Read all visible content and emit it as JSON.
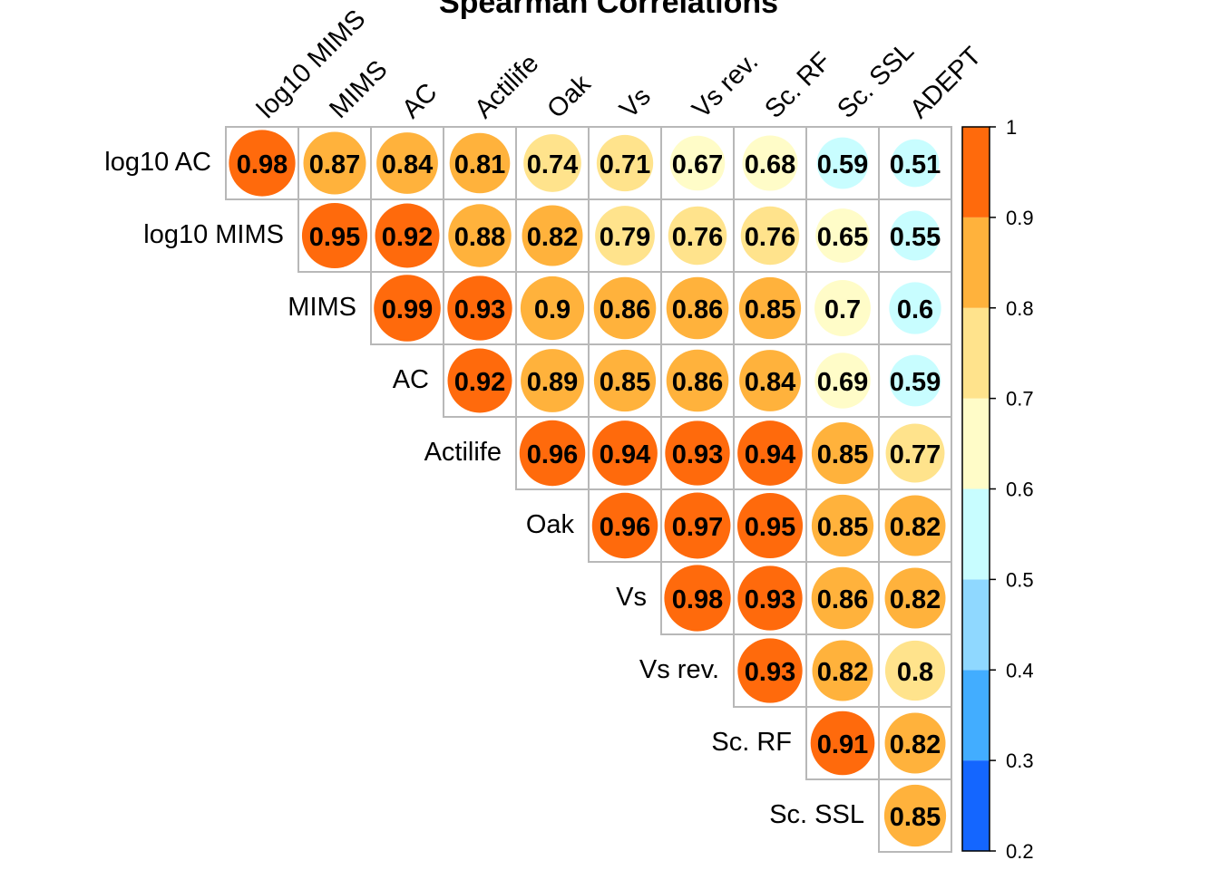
{
  "chart_data": {
    "type": "heatmap",
    "title": "Spearman Correlations",
    "columns": [
      "log10 MIMS",
      "MIMS",
      "AC",
      "Actilife",
      "Oak",
      "Vs",
      "Vs rev.",
      "Sc. RF",
      "Sc. SSL",
      "ADEPT"
    ],
    "rows": [
      "log10 AC",
      "log10 MIMS",
      "MIMS",
      "AC",
      "Actilife",
      "Oak",
      "Vs",
      "Vs rev.",
      "Sc. RF",
      "Sc. SSL"
    ],
    "values": [
      [
        0.98,
        0.87,
        0.84,
        0.81,
        0.74,
        0.71,
        0.67,
        0.68,
        0.59,
        0.51
      ],
      [
        null,
        0.95,
        0.92,
        0.88,
        0.82,
        0.79,
        0.76,
        0.76,
        0.65,
        0.55
      ],
      [
        null,
        null,
        0.99,
        0.93,
        0.9,
        0.86,
        0.86,
        0.85,
        0.7,
        0.6
      ],
      [
        null,
        null,
        null,
        0.92,
        0.89,
        0.85,
        0.86,
        0.84,
        0.69,
        0.59
      ],
      [
        null,
        null,
        null,
        null,
        0.96,
        0.94,
        0.93,
        0.94,
        0.85,
        0.77
      ],
      [
        null,
        null,
        null,
        null,
        null,
        0.96,
        0.97,
        0.95,
        0.85,
        0.82
      ],
      [
        null,
        null,
        null,
        null,
        null,
        null,
        0.98,
        0.93,
        0.86,
        0.82
      ],
      [
        null,
        null,
        null,
        null,
        null,
        null,
        null,
        0.93,
        0.82,
        0.8
      ],
      [
        null,
        null,
        null,
        null,
        null,
        null,
        null,
        null,
        0.91,
        0.82
      ],
      [
        null,
        null,
        null,
        null,
        null,
        null,
        null,
        null,
        null,
        0.85
      ]
    ],
    "value_labels": [
      [
        "0.98",
        "0.87",
        "0.84",
        "0.81",
        "0.74",
        "0.71",
        "0.67",
        "0.68",
        "0.59",
        "0.51"
      ],
      [
        null,
        "0.95",
        "0.92",
        "0.88",
        "0.82",
        "0.79",
        "0.76",
        "0.76",
        "0.65",
        "0.55"
      ],
      [
        null,
        null,
        "0.99",
        "0.93",
        "0.9",
        "0.86",
        "0.86",
        "0.85",
        "0.7",
        "0.6"
      ],
      [
        null,
        null,
        null,
        "0.92",
        "0.89",
        "0.85",
        "0.86",
        "0.84",
        "0.69",
        "0.59"
      ],
      [
        null,
        null,
        null,
        null,
        "0.96",
        "0.94",
        "0.93",
        "0.94",
        "0.85",
        "0.77"
      ],
      [
        null,
        null,
        null,
        null,
        null,
        "0.96",
        "0.97",
        "0.95",
        "0.85",
        "0.82"
      ],
      [
        null,
        null,
        null,
        null,
        null,
        null,
        "0.98",
        "0.93",
        "0.86",
        "0.82"
      ],
      [
        null,
        null,
        null,
        null,
        null,
        null,
        null,
        "0.93",
        "0.82",
        "0.8"
      ],
      [
        null,
        null,
        null,
        null,
        null,
        null,
        null,
        null,
        "0.91",
        "0.82"
      ],
      [
        null,
        null,
        null,
        null,
        null,
        null,
        null,
        null,
        null,
        "0.85"
      ]
    ],
    "color_scale": {
      "breaks": [
        0.2,
        0.3,
        0.4,
        0.5,
        0.6,
        0.7,
        0.8,
        0.9,
        1.0
      ],
      "tick_labels": [
        "0.2",
        "0.3",
        "0.4",
        "0.5",
        "0.6",
        "0.7",
        "0.8",
        "0.9",
        "1"
      ],
      "colors": [
        "#1466ff",
        "#42adff",
        "#8fd8ff",
        "#c8fdff",
        "#fffcc8",
        "#ffe38c",
        "#ffb23c",
        "#ff6a0c"
      ]
    },
    "marker": "circle (size and color encode value)",
    "layout": "upper triangle",
    "legend_placement": "right"
  }
}
